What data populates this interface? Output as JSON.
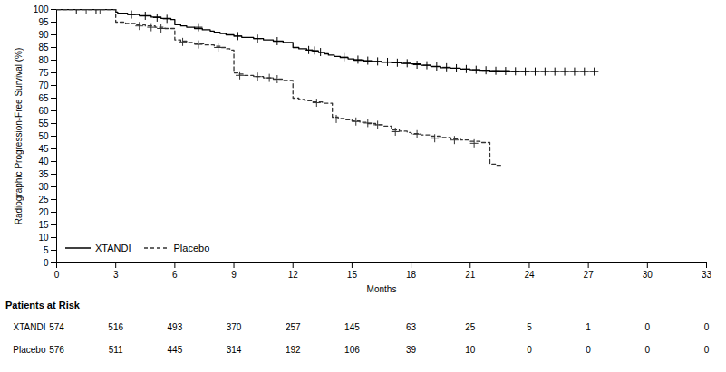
{
  "chart_data": {
    "type": "step",
    "xlabel": "Months",
    "ylabel": "Radiographic Progression-Free Survival (%)",
    "xlim": [
      0,
      33
    ],
    "ylim": [
      0,
      100
    ],
    "xticks": [
      0,
      3,
      6,
      9,
      12,
      15,
      18,
      21,
      24,
      27,
      30,
      33
    ],
    "yticks": [
      0,
      5,
      10,
      15,
      20,
      25,
      30,
      35,
      40,
      45,
      50,
      55,
      60,
      65,
      70,
      75,
      80,
      85,
      90,
      95,
      100
    ],
    "grid": false,
    "legend": "lower left",
    "series": [
      {
        "name": "XTANDI",
        "color": "black",
        "line_style": "solid",
        "x": [
          0,
          2.9,
          3.0,
          3.1,
          3.6,
          4.2,
          4.8,
          5.3,
          5.8,
          6.0,
          6.3,
          6.6,
          7.0,
          7.4,
          7.8,
          8.0,
          8.3,
          8.6,
          9.0,
          9.4,
          10.0,
          10.5,
          11.0,
          11.5,
          12.0,
          12.3,
          12.7,
          13.0,
          13.3,
          13.6,
          13.8,
          14.1,
          14.4,
          14.8,
          15.1,
          15.6,
          16.0,
          16.5,
          17.0,
          17.5,
          18.0,
          18.5,
          19.0,
          19.5,
          20.0,
          20.5,
          21.0,
          21.5,
          22.0,
          23.0,
          24.0,
          25.0,
          26.0,
          27.0,
          27.5
        ],
        "values": [
          100,
          100,
          99.0,
          98.5,
          98.0,
          97.5,
          97.0,
          96.5,
          96.0,
          94.0,
          93.5,
          93.0,
          92.5,
          92.0,
          91.5,
          91.0,
          90.5,
          90.0,
          89.5,
          89.0,
          88.5,
          88.0,
          87.5,
          87.0,
          85.0,
          84.5,
          84.0,
          83.5,
          83.0,
          82.5,
          82.0,
          81.5,
          81.0,
          80.5,
          80.0,
          79.7,
          79.5,
          79.2,
          79.0,
          78.7,
          78.5,
          78.0,
          77.5,
          77.0,
          76.8,
          76.5,
          76.2,
          76.0,
          75.8,
          75.6,
          75.5,
          75.5,
          75.5,
          75.5,
          75.5
        ],
        "censors_x": [
          1.0,
          2.0,
          3.8,
          4.5,
          5.1,
          5.6,
          7.2,
          9.2,
          10.2,
          11.2,
          12.8,
          13.1,
          13.4,
          14.6,
          15.3,
          15.8,
          16.3,
          16.8,
          17.3,
          17.8,
          18.3,
          18.8,
          19.3,
          19.8,
          20.3,
          20.8,
          21.3,
          21.8,
          22.3,
          22.8,
          23.3,
          23.8,
          24.3,
          24.8,
          25.3,
          25.8,
          26.3,
          26.8,
          27.3
        ],
        "censors_y": [
          100,
          100,
          98.0,
          97.5,
          96.8,
          96.3,
          93.0,
          89.5,
          88.5,
          87.5,
          84.0,
          83.8,
          83.2,
          81.2,
          80.2,
          79.8,
          79.5,
          79.3,
          79.0,
          78.8,
          78.2,
          78.0,
          77.5,
          77.2,
          76.8,
          76.5,
          76.2,
          76.0,
          75.8,
          75.7,
          75.6,
          75.5,
          75.5,
          75.5,
          75.5,
          75.5,
          75.5,
          75.5,
          75.5
        ]
      },
      {
        "name": "Placebo",
        "color": "#333333",
        "line_style": "dashed",
        "x": [
          0,
          2.5,
          3.0,
          3.5,
          4.0,
          4.5,
          5.0,
          5.5,
          6.0,
          6.0,
          6.3,
          6.6,
          7.0,
          7.5,
          8.0,
          8.3,
          8.6,
          8.8,
          9.0,
          9.2,
          9.5,
          10.0,
          10.5,
          11.0,
          11.5,
          12.0,
          12.3,
          12.6,
          13.0,
          13.5,
          14.0,
          14.3,
          14.6,
          15.0,
          15.4,
          15.8,
          16.2,
          16.6,
          17.0,
          17.4,
          17.8,
          18.0,
          18.5,
          19.0,
          19.5,
          20.0,
          20.5,
          21.0,
          21.5,
          22.0,
          22.0,
          22.3,
          22.6
        ],
        "values": [
          100,
          100,
          95.0,
          94.5,
          94.0,
          93.5,
          93.0,
          92.5,
          92.0,
          88.0,
          87.5,
          87.0,
          86.5,
          86.0,
          85.5,
          85.0,
          84.5,
          84.0,
          75.0,
          74.5,
          74.0,
          73.5,
          73.0,
          72.5,
          72.0,
          65.0,
          64.5,
          64.0,
          63.5,
          63.0,
          57.5,
          57.0,
          56.5,
          56.0,
          55.5,
          55.0,
          54.5,
          54.0,
          52.5,
          52.0,
          51.5,
          51.0,
          50.5,
          50.0,
          49.5,
          49.0,
          48.5,
          48.0,
          47.5,
          47.0,
          39.0,
          38.5,
          38.0
        ],
        "censors_x": [
          1.5,
          2.2,
          4.2,
          4.8,
          5.3,
          6.4,
          7.2,
          8.2,
          9.3,
          10.2,
          10.8,
          11.2,
          13.2,
          14.2,
          15.2,
          15.8,
          16.3,
          17.2,
          18.3,
          19.2,
          20.2,
          21.2
        ],
        "censors_y": [
          100,
          100,
          93.5,
          93.0,
          92.5,
          87.2,
          86.2,
          85.0,
          74.0,
          73.5,
          73.0,
          72.5,
          63.2,
          56.8,
          55.8,
          55.2,
          54.5,
          51.8,
          50.8,
          49.2,
          48.5,
          47.2
        ]
      }
    ],
    "risk_table": {
      "title": "Patients at Risk",
      "times": [
        0,
        3,
        6,
        9,
        12,
        15,
        18,
        21,
        24,
        27,
        30,
        33
      ],
      "rows": [
        {
          "name": "XTANDI",
          "values": [
            574,
            516,
            493,
            370,
            257,
            145,
            63,
            25,
            5,
            1,
            0,
            0
          ]
        },
        {
          "name": "Placebo",
          "values": [
            576,
            511,
            445,
            314,
            192,
            106,
            39,
            10,
            0,
            0,
            0,
            0
          ]
        }
      ]
    }
  }
}
